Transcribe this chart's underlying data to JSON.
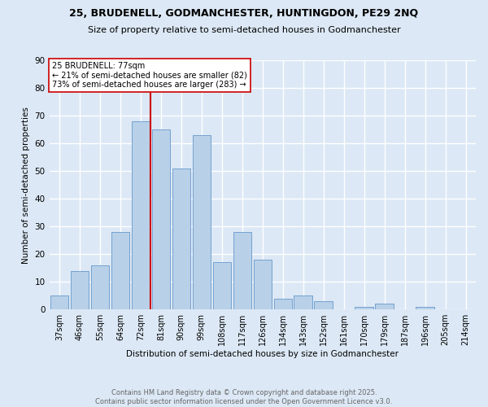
{
  "title1": "25, BRUDENELL, GODMANCHESTER, HUNTINGDON, PE29 2NQ",
  "title2": "Size of property relative to semi-detached houses in Godmanchester",
  "xlabel": "Distribution of semi-detached houses by size in Godmanchester",
  "ylabel": "Number of semi-detached properties",
  "footer1": "Contains HM Land Registry data © Crown copyright and database right 2025.",
  "footer2": "Contains public sector information licensed under the Open Government Licence v3.0.",
  "bar_labels": [
    "37sqm",
    "46sqm",
    "55sqm",
    "64sqm",
    "72sqm",
    "81sqm",
    "90sqm",
    "99sqm",
    "108sqm",
    "117sqm",
    "126sqm",
    "134sqm",
    "143sqm",
    "152sqm",
    "161sqm",
    "170sqm",
    "179sqm",
    "187sqm",
    "196sqm",
    "205sqm",
    "214sqm"
  ],
  "bar_values": [
    5,
    14,
    16,
    28,
    68,
    65,
    51,
    63,
    17,
    28,
    18,
    4,
    5,
    3,
    0,
    1,
    2,
    0,
    1,
    0,
    0
  ],
  "bar_color": "#b8d0e8",
  "bar_edge_color": "#6699cc",
  "vline_color": "#cc0000",
  "annotation_title": "25 BRUDENELL: 77sqm",
  "annotation_line1": "← 21% of semi-detached houses are smaller (82)",
  "annotation_line2": "73% of semi-detached houses are larger (283) →",
  "ylim": [
    0,
    90
  ],
  "yticks": [
    0,
    10,
    20,
    30,
    40,
    50,
    60,
    70,
    80,
    90
  ],
  "bg_color": "#dce8f5",
  "grid_color": "#ffffff"
}
